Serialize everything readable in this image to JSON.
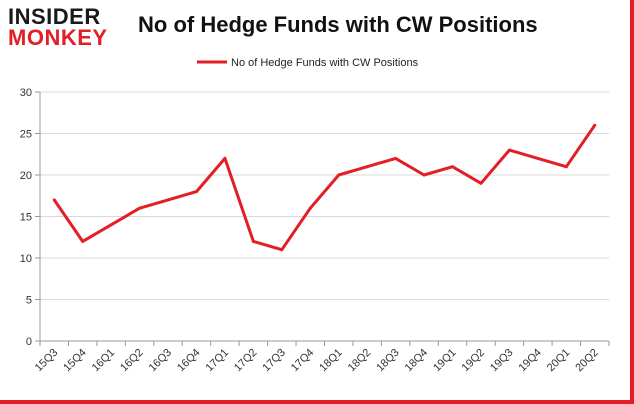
{
  "logo": {
    "line1": "INSIDER",
    "line2": "MONKEY"
  },
  "chart_data": {
    "type": "line",
    "title": "No of Hedge Funds with CW Positions",
    "xlabel": "",
    "ylabel": "",
    "categories": [
      "15Q3",
      "15Q4",
      "16Q1",
      "16Q2",
      "16Q3",
      "16Q4",
      "17Q1",
      "17Q2",
      "17Q3",
      "17Q4",
      "18Q1",
      "18Q2",
      "18Q3",
      "18Q4",
      "19Q1",
      "19Q2",
      "19Q3",
      "19Q4",
      "20Q1",
      "20Q2"
    ],
    "series": [
      {
        "name": "No of Hedge Funds with CW Positions",
        "color": "#e31e24",
        "values": [
          17,
          12,
          14,
          16,
          17,
          18,
          22,
          12,
          11,
          16,
          20,
          21,
          22,
          20,
          21,
          19,
          23,
          22,
          21,
          26
        ]
      }
    ],
    "ylim": [
      0,
      30
    ],
    "yticks": [
      0,
      5,
      10,
      15,
      20,
      25,
      30
    ],
    "grid": true,
    "legend_position": "top-center"
  }
}
